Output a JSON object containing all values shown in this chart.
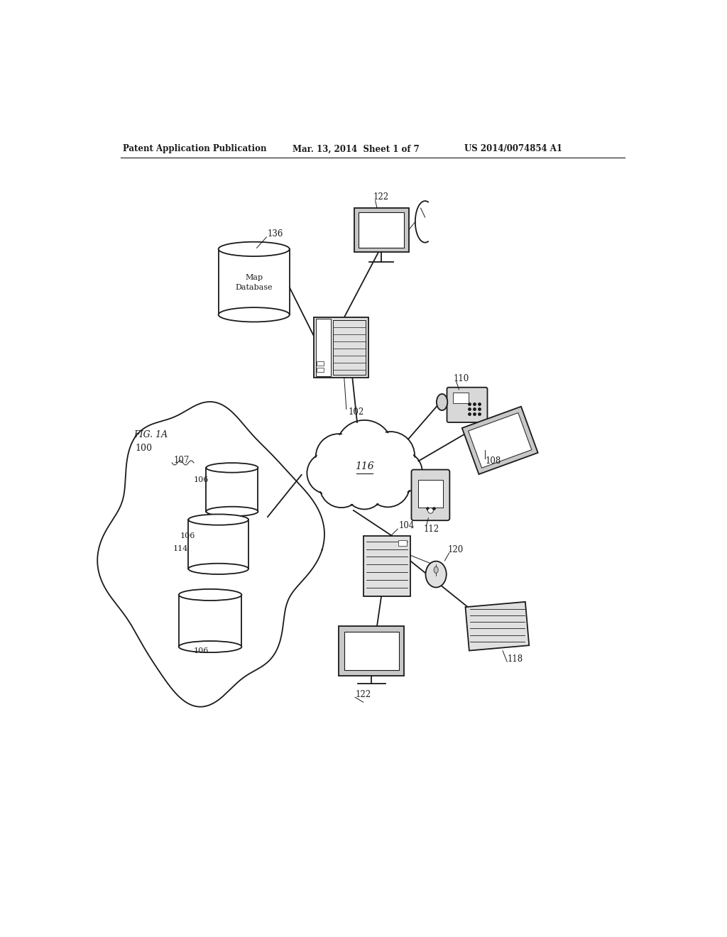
{
  "header_left": "Patent Application Publication",
  "header_mid": "Mar. 13, 2014  Sheet 1 of 7",
  "header_right": "US 2014/0074854 A1",
  "fig_label": "FIG. 1A",
  "fig_number": "100",
  "background_color": "#ffffff",
  "line_color": "#1a1a1a",
  "gray_fill": "#e8e8e8",
  "white_fill": "#ffffff"
}
